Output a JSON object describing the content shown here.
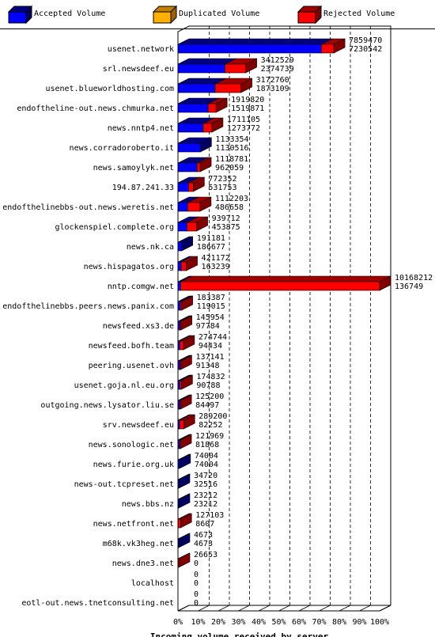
{
  "legend": {
    "accepted": {
      "label": "Accepted Volume",
      "color": "#0000ff"
    },
    "duplicated": {
      "label": "Duplicated Volume",
      "color": "#ffb000"
    },
    "rejected": {
      "label": "Rejected Volume",
      "color": "#ff0000"
    }
  },
  "chart_data": {
    "type": "bar",
    "orientation": "horizontal",
    "stacked": true,
    "title": "",
    "xlabel": "Incoming volume received by server",
    "x_ticks": [
      "0%",
      "10%",
      "20%",
      "30%",
      "40%",
      "50%",
      "60%",
      "70%",
      "80%",
      "90%",
      "100%"
    ],
    "xlim": [
      0,
      10168212
    ],
    "grid": true,
    "legend_position": "top",
    "rows": [
      {
        "server": "usenet.network",
        "total": 7859470,
        "accepted": 7230542
      },
      {
        "server": "srl.newsdeef.eu",
        "total": 3412529,
        "accepted": 2374739
      },
      {
        "server": "usenet.blueworldhosting.com",
        "total": 3172760,
        "accepted": 1873109
      },
      {
        "server": "endoftheline-out.news.chmurka.net",
        "total": 1919820,
        "accepted": 1519871
      },
      {
        "server": "news.nntp4.net",
        "total": 1711105,
        "accepted": 1273772
      },
      {
        "server": "news.corradoroberto.it",
        "total": 1133354,
        "accepted": 1130516
      },
      {
        "server": "news.samoylyk.net",
        "total": 1118781,
        "accepted": 962059
      },
      {
        "server": "194.87.241.33",
        "total": 772352,
        "accepted": 531753
      },
      {
        "server": "endofthelinebbs-out.news.weretis.net",
        "total": 1112203,
        "accepted": 486658
      },
      {
        "server": "glockenspiel.complete.org",
        "total": 939712,
        "accepted": 453875
      },
      {
        "server": "news.nk.ca",
        "total": 191181,
        "accepted": 186677
      },
      {
        "server": "news.hispagatos.org",
        "total": 421172,
        "accepted": 163239
      },
      {
        "server": "nntp.comgw.net",
        "total": 10168212,
        "accepted": 136749
      },
      {
        "server": "endofthelinebbs.peers.news.panix.com",
        "total": 183387,
        "accepted": 119015
      },
      {
        "server": "newsfeed.xs3.de",
        "total": 145954,
        "accepted": 97784
      },
      {
        "server": "newsfeed.bofh.team",
        "total": 274744,
        "accepted": 94434
      },
      {
        "server": "peering.usenet.ovh",
        "total": 137141,
        "accepted": 91348
      },
      {
        "server": "usenet.goja.nl.eu.org",
        "total": 174832,
        "accepted": 90788
      },
      {
        "server": "outgoing.news.lysator.liu.se",
        "total": 125200,
        "accepted": 84497
      },
      {
        "server": "srv.newsdeef.eu",
        "total": 289200,
        "accepted": 82252
      },
      {
        "server": "news.sonologic.net",
        "total": 121969,
        "accepted": 81868
      },
      {
        "server": "news.furie.org.uk",
        "total": 74004,
        "accepted": 74004
      },
      {
        "server": "news-out.tcpreset.net",
        "total": 34720,
        "accepted": 32516
      },
      {
        "server": "news.bbs.nz",
        "total": 23212,
        "accepted": 23212
      },
      {
        "server": "news.netfront.net",
        "total": 127103,
        "accepted": 8607
      },
      {
        "server": "m68k.vk3heg.net",
        "total": 4673,
        "accepted": 4673
      },
      {
        "server": "news.dne3.net",
        "total": 26653,
        "accepted": 0
      },
      {
        "server": "localhost",
        "total": 0,
        "accepted": 0
      },
      {
        "server": "eotl-out.news.tnetconsulting.net",
        "total": 0,
        "accepted": 0
      }
    ]
  }
}
